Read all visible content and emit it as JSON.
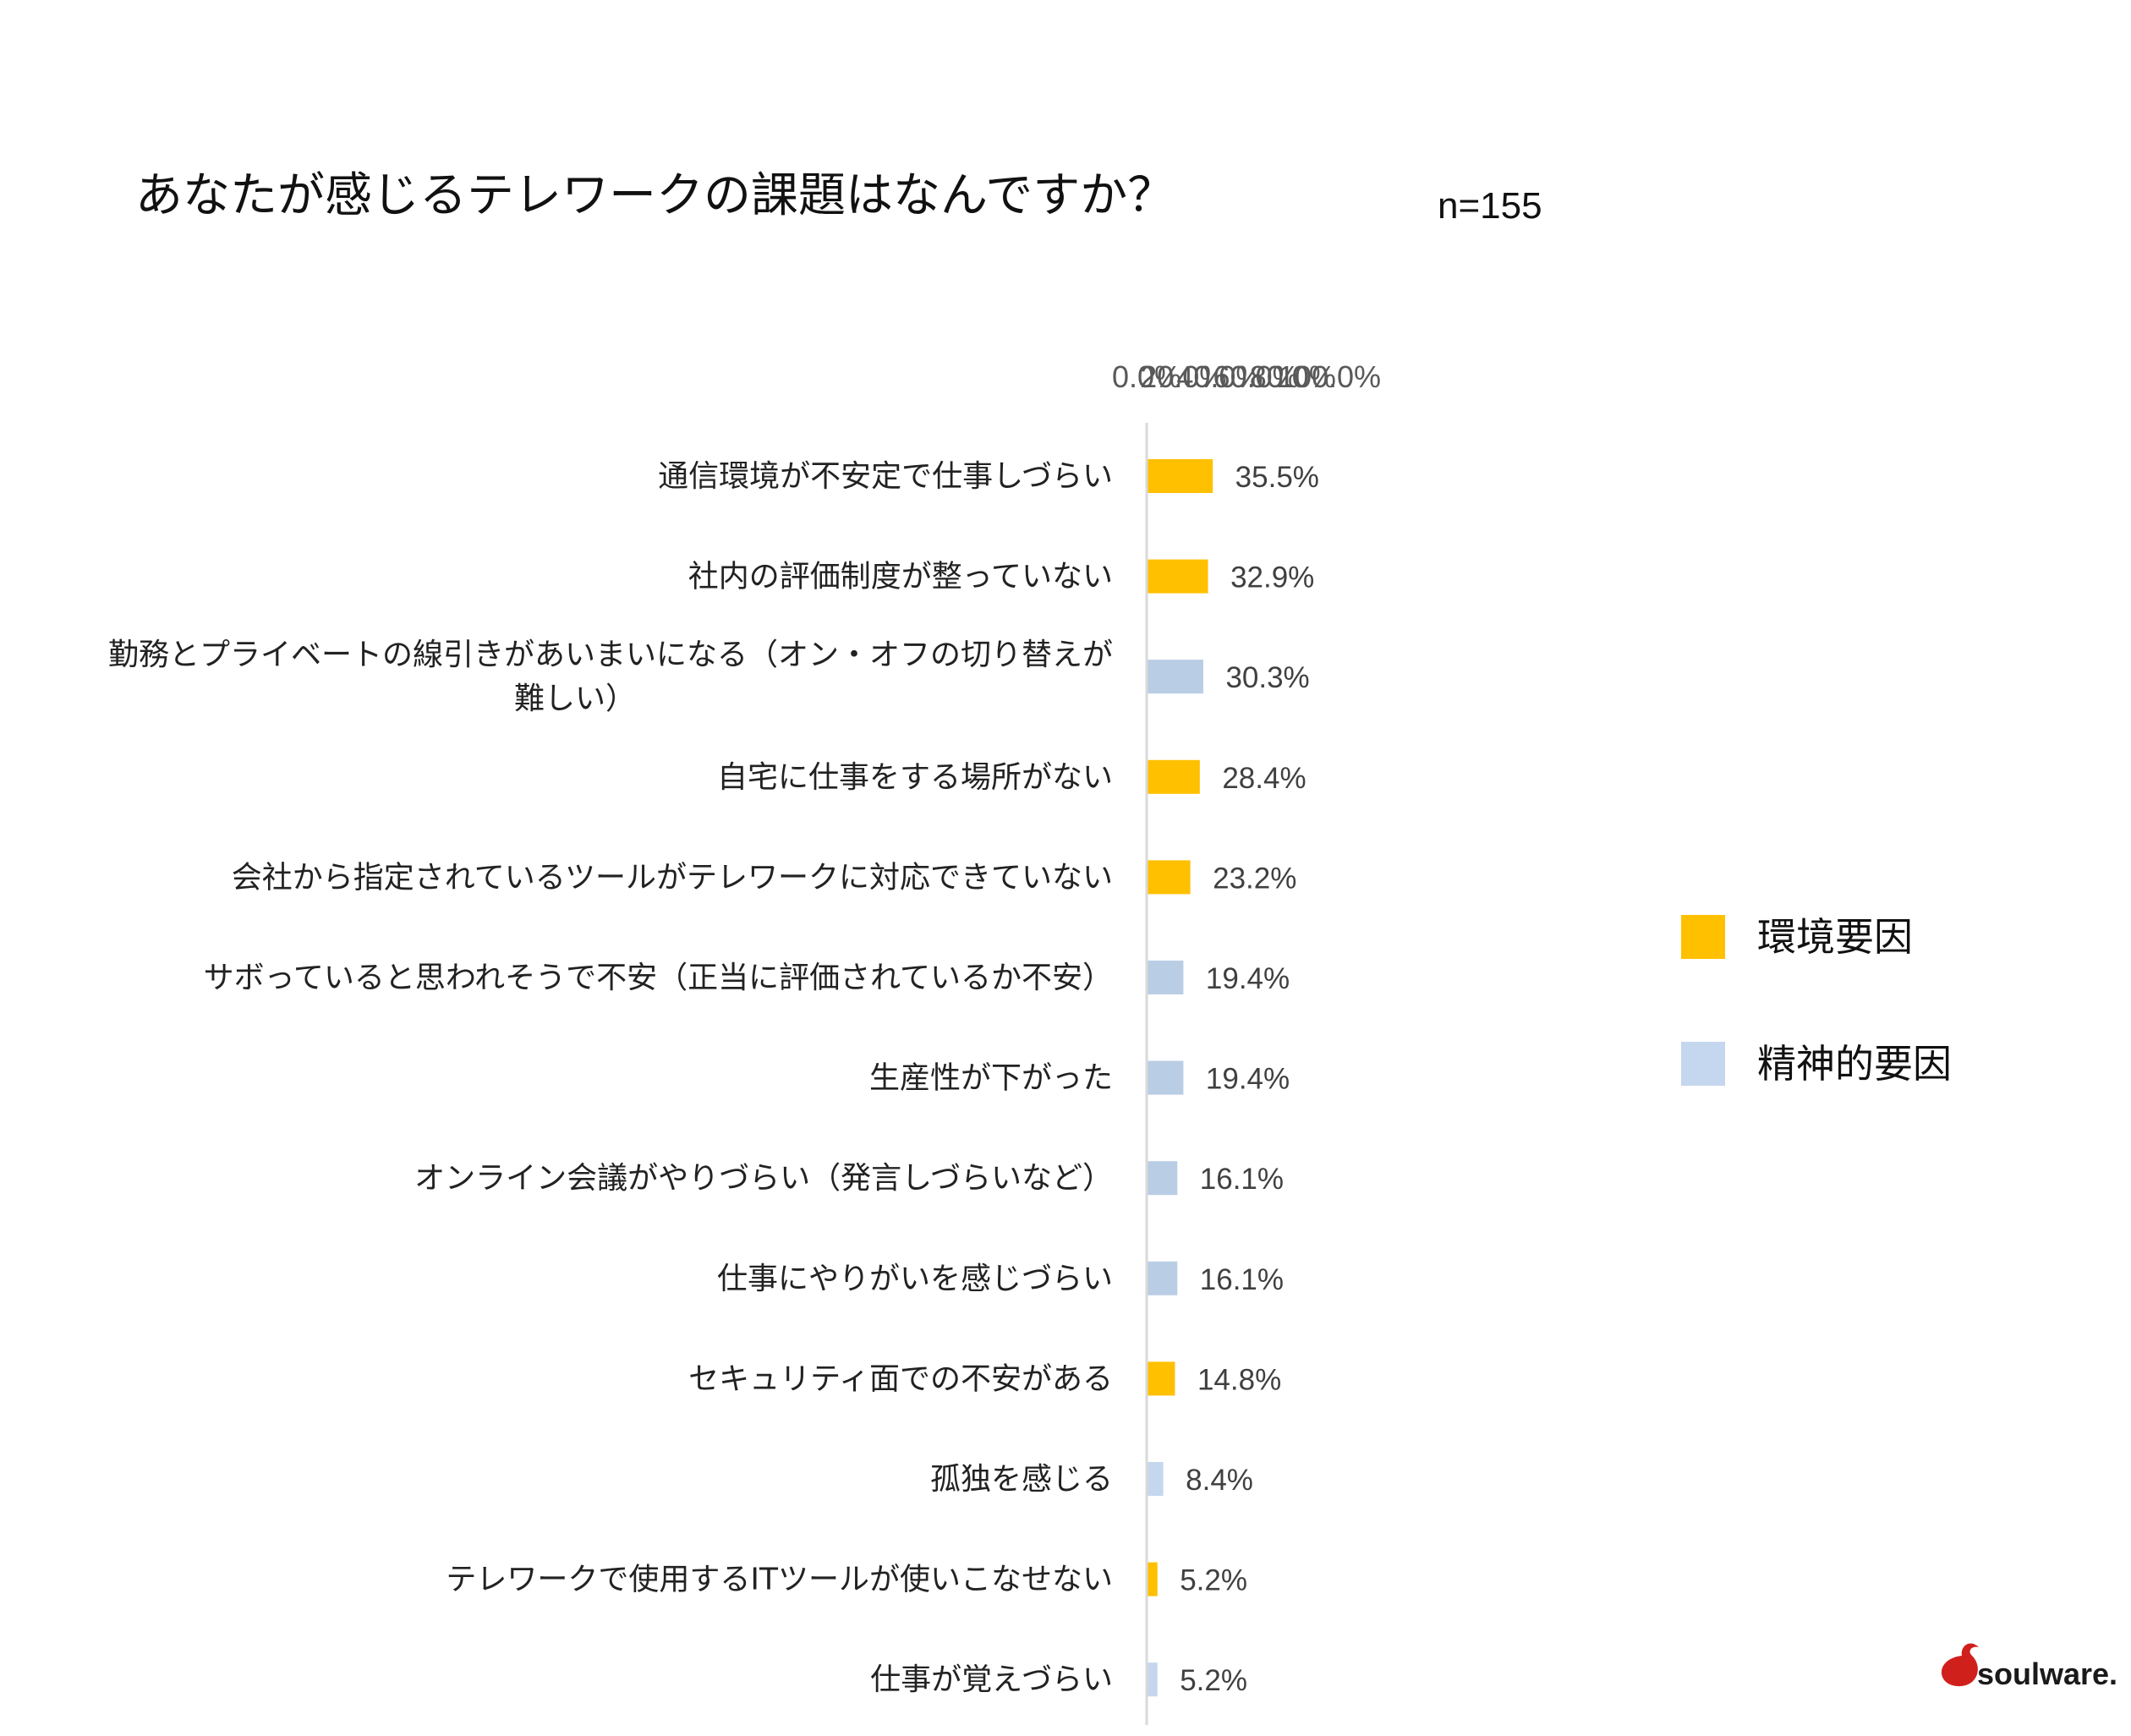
{
  "chart_data": {
    "type": "bar",
    "orientation": "horizontal",
    "title": "あなたが感じるテレワークの課題はなんですか？",
    "sample_size": "n=155",
    "xlim": [
      0,
      100
    ],
    "x_ticks": [
      "0.0%",
      "20.0%",
      "40.0%",
      "60.0%",
      "80.0%",
      "100.0%"
    ],
    "x_axis_position": "top",
    "grid": false,
    "legend_position": "right",
    "legend": [
      {
        "name": "環境要因",
        "color": "#ffc000"
      },
      {
        "name": "精神的要因",
        "color": "#c5d7ee"
      }
    ],
    "bars": [
      {
        "lines": [
          "通信環境が不安定で仕事しづらい"
        ],
        "value": 35.5,
        "label": "35.5%",
        "group": 0,
        "color": "#ffc000"
      },
      {
        "lines": [
          "社内の評価制度が整っていない"
        ],
        "value": 32.9,
        "label": "32.9%",
        "group": 0,
        "color": "#ffc000"
      },
      {
        "lines": [
          "勤務とプライベートの線引きがあいまいになる（オン・オフの切り替えが",
          "難しい）"
        ],
        "value": 30.3,
        "label": "30.3%",
        "group": 1,
        "color": "#b9cde5"
      },
      {
        "lines": [
          "自宅に仕事をする場所がない"
        ],
        "value": 28.4,
        "label": "28.4%",
        "group": 0,
        "color": "#ffc000"
      },
      {
        "lines": [
          "会社から指定されているツールがテレワークに対応できていない"
        ],
        "value": 23.2,
        "label": "23.2%",
        "group": 0,
        "color": "#ffc000"
      },
      {
        "lines": [
          "サボっていると思われそうで不安（正当に評価されているか不安）"
        ],
        "value": 19.4,
        "label": "19.4%",
        "group": 1,
        "color": "#b9cde5"
      },
      {
        "lines": [
          "生産性が下がった"
        ],
        "value": 19.4,
        "label": "19.4%",
        "group": 1,
        "color": "#b9cde5"
      },
      {
        "lines": [
          "オンライン会議がやりづらい（発言しづらいなど）"
        ],
        "value": 16.1,
        "label": "16.1%",
        "group": 1,
        "color": "#b9cde5"
      },
      {
        "lines": [
          "仕事にやりがいを感じづらい"
        ],
        "value": 16.1,
        "label": "16.1%",
        "group": 1,
        "color": "#b9cde5"
      },
      {
        "lines": [
          "セキュリティ面での不安がある"
        ],
        "value": 14.8,
        "label": "14.8%",
        "group": 0,
        "color": "#ffc000"
      },
      {
        "lines": [
          "孤独を感じる"
        ],
        "value": 8.4,
        "label": "8.4%",
        "group": 1,
        "color": "#c5d7ee"
      },
      {
        "lines": [
          "テレワークで使用するITツールが使いこなせない"
        ],
        "value": 5.2,
        "label": "5.2%",
        "group": 0,
        "color": "#ffc000"
      },
      {
        "lines": [
          "仕事が覚えづらい"
        ],
        "value": 5.2,
        "label": "5.2%",
        "group": 1,
        "color": "#c5d7ee"
      }
    ]
  },
  "logo": {
    "text": "soulware.",
    "mark_color": "#d0201c"
  }
}
